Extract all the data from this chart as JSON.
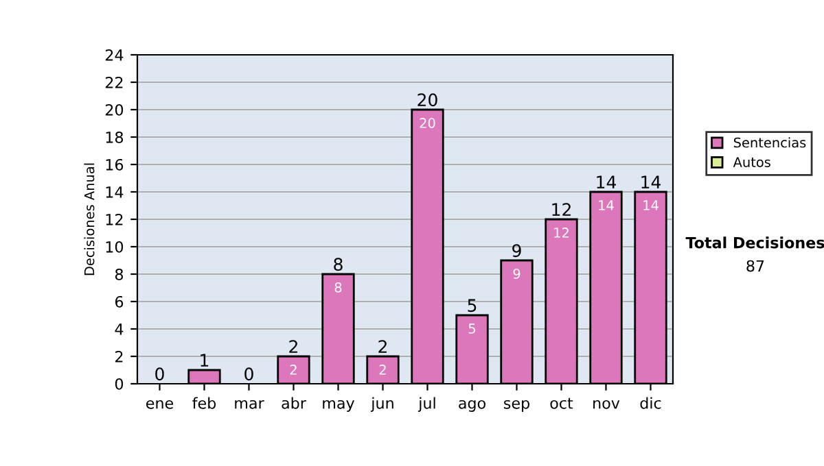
{
  "chart_data": {
    "type": "bar",
    "ylabel": "Decisiones Anual",
    "categories": [
      "ene",
      "feb",
      "mar",
      "abr",
      "may",
      "jun",
      "jul",
      "ago",
      "sep",
      "oct",
      "nov",
      "dic"
    ],
    "stacked": true,
    "series": [
      {
        "name": "Sentencias",
        "color": "#dd77bb",
        "values": [
          0,
          1,
          0,
          2,
          8,
          2,
          20,
          5,
          9,
          12,
          14,
          14
        ],
        "value_labels": [
          null,
          null,
          null,
          "2",
          "8",
          "2",
          "20",
          "5",
          "9",
          "12",
          "14",
          "14"
        ]
      },
      {
        "name": "Autos",
        "color": "#ddee99",
        "values": [
          0,
          0,
          0,
          0,
          0,
          0,
          0,
          0,
          0,
          0,
          0,
          0
        ]
      }
    ],
    "totals": [
      "0",
      "1",
      "0",
      "2",
      "8",
      "2",
      "20",
      "5",
      "9",
      "12",
      "14",
      "14"
    ],
    "ylim": [
      0,
      24
    ],
    "yticks": [
      0,
      2,
      4,
      6,
      8,
      10,
      12,
      14,
      16,
      18,
      20,
      22,
      24
    ],
    "grid": "y",
    "legend": "right",
    "annotations": [
      "Total Decisiones",
      "87"
    ]
  }
}
